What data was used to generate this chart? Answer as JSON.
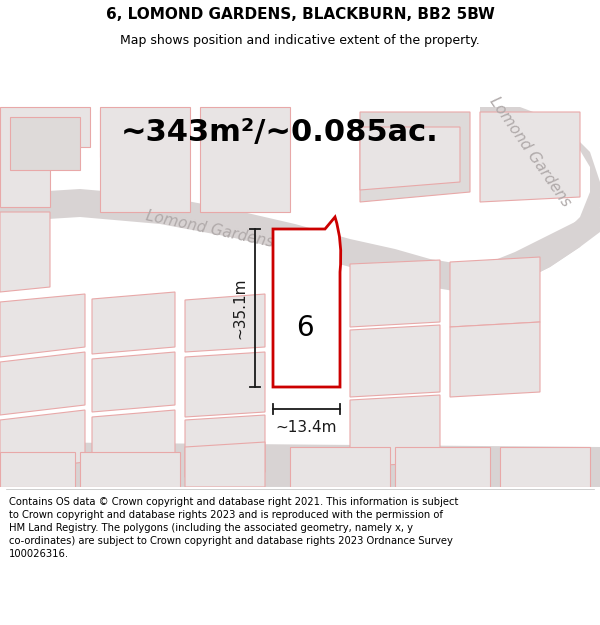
{
  "title": "6, LOMOND GARDENS, BLACKBURN, BB2 5BW",
  "subtitle": "Map shows position and indicative extent of the property.",
  "footer": "Contains OS data © Crown copyright and database right 2021. This information is subject to Crown copyright and database rights 2023 and is reproduced with the permission of HM Land Registry. The polygons (including the associated geometry, namely x, y co-ordinates) are subject to Crown copyright and database rights 2023 Ordnance Survey 100026316.",
  "area_text": "~343m²/~0.085ac.",
  "label_6": "6",
  "dim_height": "~35.1m",
  "dim_width": "~13.4m",
  "road_label_lomond": "Lomond Gardens",
  "bg_color": "#f7f0f0",
  "road_color": "#d8d3d3",
  "road_color2": "#e0dada",
  "plot_fill_light": "#e8e4e4",
  "plot_fill_med": "#dedad9",
  "plot_outline": "#e8a8a8",
  "highlight_red": "#cc0000",
  "highlight_fill": "#ffffff",
  "dim_color": "#1a1a1a",
  "road_text_color": "#b0aaaa",
  "title_fontsize": 11,
  "subtitle_fontsize": 9,
  "footer_fontsize": 7.2,
  "area_fontsize": 22,
  "label_fontsize": 20,
  "dim_fontsize": 11,
  "road_fontsize": 11
}
